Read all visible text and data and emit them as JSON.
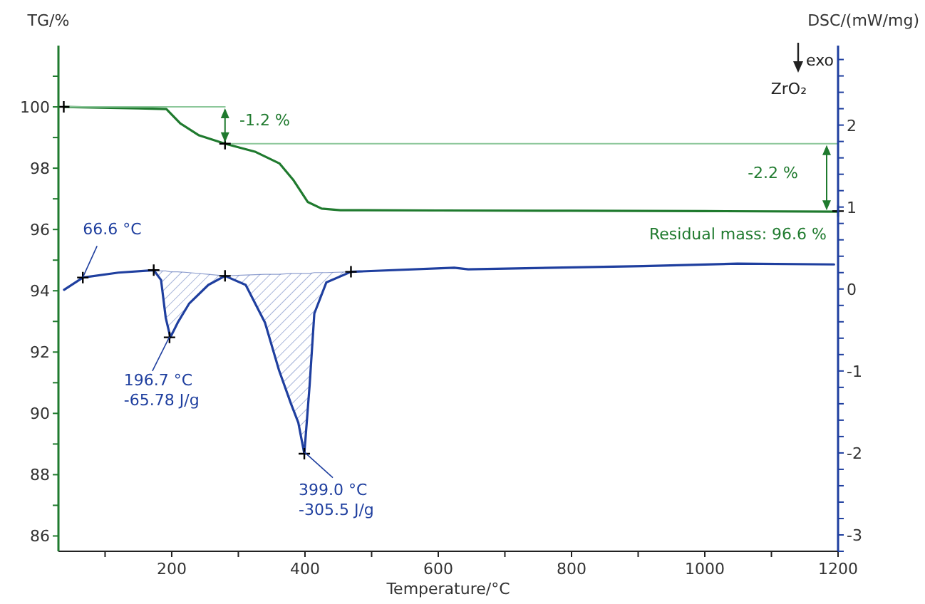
{
  "chart_data": {
    "type": "line",
    "xlabel": "Temperature/°C",
    "ylabel": "TG/%",
    "y2label": "DSC/(mW/mg)",
    "xlim": [
      30,
      1200
    ],
    "xticks": [
      {
        "value": 100,
        "label": null
      },
      200,
      {
        "value": 300,
        "label": null
      },
      400,
      {
        "value": 500,
        "label": null
      },
      600,
      {
        "value": 700,
        "label": null
      },
      800,
      {
        "value": 900,
        "label": null
      },
      1000,
      {
        "value": 1100,
        "label": null
      },
      1200
    ],
    "ylim": [
      85.5,
      102
    ],
    "yticks": [
      86,
      {
        "value": 87,
        "label": null
      },
      88,
      {
        "value": 89,
        "label": null
      },
      90,
      {
        "value": 91,
        "label": null
      },
      92,
      {
        "value": 93,
        "label": null
      },
      94,
      {
        "value": 95,
        "label": null
      },
      96,
      {
        "value": 97,
        "label": null
      },
      98,
      {
        "value": 99,
        "label": null
      },
      100,
      {
        "value": 101,
        "label": null
      }
    ],
    "y2lim": [
      -3.2,
      2.97
    ],
    "y2ticks": [
      {
        "value": -3.2,
        "label": null
      },
      -3,
      {
        "value": -2.8,
        "label": null
      },
      {
        "value": -2.6,
        "label": null
      },
      {
        "value": -2.4,
        "label": null
      },
      {
        "value": -2.2,
        "label": null
      },
      -2,
      {
        "value": -1.8,
        "label": null
      },
      {
        "value": -1.6,
        "label": null
      },
      {
        "value": -1.4,
        "label": null
      },
      {
        "value": -1.2,
        "label": null
      },
      -1,
      {
        "value": -0.8,
        "label": null
      },
      {
        "value": -0.6,
        "label": null
      },
      {
        "value": -0.4,
        "label": null
      },
      {
        "value": -0.2,
        "label": null
      },
      0,
      {
        "value": 0.2,
        "label": null
      },
      {
        "value": 0.4,
        "label": null
      },
      {
        "value": 0.6,
        "label": null
      },
      {
        "value": 0.8,
        "label": null
      },
      1,
      {
        "value": 1.2,
        "label": null
      },
      {
        "value": 1.4,
        "label": null
      },
      {
        "value": 1.6,
        "label": null
      },
      {
        "value": 1.8,
        "label": null
      },
      2,
      {
        "value": 2.2,
        "label": null
      },
      {
        "value": 2.4,
        "label": null
      },
      {
        "value": 2.6,
        "label": null
      },
      {
        "value": 2.8,
        "label": null
      }
    ],
    "series": [
      {
        "color": "#1f7a2e",
        "x": [
          38,
          150,
          192,
          213,
          241,
          280,
          326,
          362,
          383,
          404,
          425,
          453,
          600,
          800,
          1000,
          1200
        ],
        "values": [
          100,
          99.95,
          99.93,
          99.46,
          99.07,
          98.8,
          98.53,
          98.15,
          97.6,
          96.9,
          96.68,
          96.63,
          96.62,
          96.61,
          96.6,
          96.58
        ]
      },
      {
        "axis": "y2",
        "color": "#1f3f9f",
        "x": [
          38.5,
          66.8,
          120,
          173,
          184,
          191,
          198,
          209,
          226,
          255,
          280,
          311,
          340,
          361,
          379,
          390,
          399,
          407,
          414,
          432,
          469,
          624,
          645,
          907,
          1049,
          1194
        ],
        "values": [
          -0.01,
          0.14,
          0.2,
          0.23,
          0.11,
          -0.35,
          -0.59,
          -0.41,
          -0.18,
          0.05,
          0.16,
          0.05,
          -0.41,
          -0.99,
          -1.4,
          -1.63,
          -2.01,
          -1.17,
          -0.3,
          0.08,
          0.21,
          0.26,
          0.24,
          0.28,
          0.31,
          0.3
        ],
        "lower": [
          null,
          null,
          null,
          0.23,
          0.11,
          -0.35,
          -0.59,
          -0.41,
          -0.18,
          0.05,
          0.16,
          0.05,
          -0.41,
          -0.99,
          -1.4,
          -1.63,
          -2.01,
          -1.17,
          -0.3,
          0.08,
          0.21,
          null,
          null,
          null,
          null,
          null
        ],
        "upper": [
          null,
          null,
          null,
          0.23,
          0.22,
          0.22,
          0.21,
          0.21,
          0.2,
          0.18,
          0.16,
          0.17,
          0.18,
          0.18,
          0.19,
          0.19,
          0.19,
          0.19,
          0.2,
          0.2,
          0.21,
          null,
          null,
          null,
          null,
          null
        ]
      },
      {
        "color": "#8cc79a",
        "x": [
          30,
          280
        ],
        "values": [
          100,
          100
        ]
      },
      {
        "color": "#8cc79a",
        "x": [
          280,
          1200
        ],
        "values": [
          98.8,
          98.8
        ]
      },
      {
        "type": "scatter",
        "color": "#000000",
        "marker": "cross",
        "x": [
          38,
          280,
          1200
        ],
        "values": [
          100,
          98.8,
          96.6
        ]
      },
      {
        "type": "scatter",
        "axis": "y2",
        "color": "#000000",
        "marker": "cross",
        "x": [
          66.6,
          173,
          196.7,
          280,
          399,
          469
        ],
        "values": [
          0.14,
          0.23,
          -0.59,
          0.16,
          -2.01,
          0.21
        ]
      }
    ],
    "annotations": [
      {
        "text": "Residual mass: 96.6 %",
        "x": 1200,
        "y": 96.6
      },
      {
        "text": "66.6 °C",
        "x": 66.6,
        "y": 94.44
      },
      {
        "text": "196.7 °C\n-65.78 J/g",
        "x": 196.7,
        "y": 92.5
      },
      {
        "text": "399.0 °C\n-305.5 J/g",
        "x": 399,
        "y": 88.74
      },
      "-1.2 %",
      "-2.2 %",
      "ZrO₂",
      "exo"
    ]
  }
}
